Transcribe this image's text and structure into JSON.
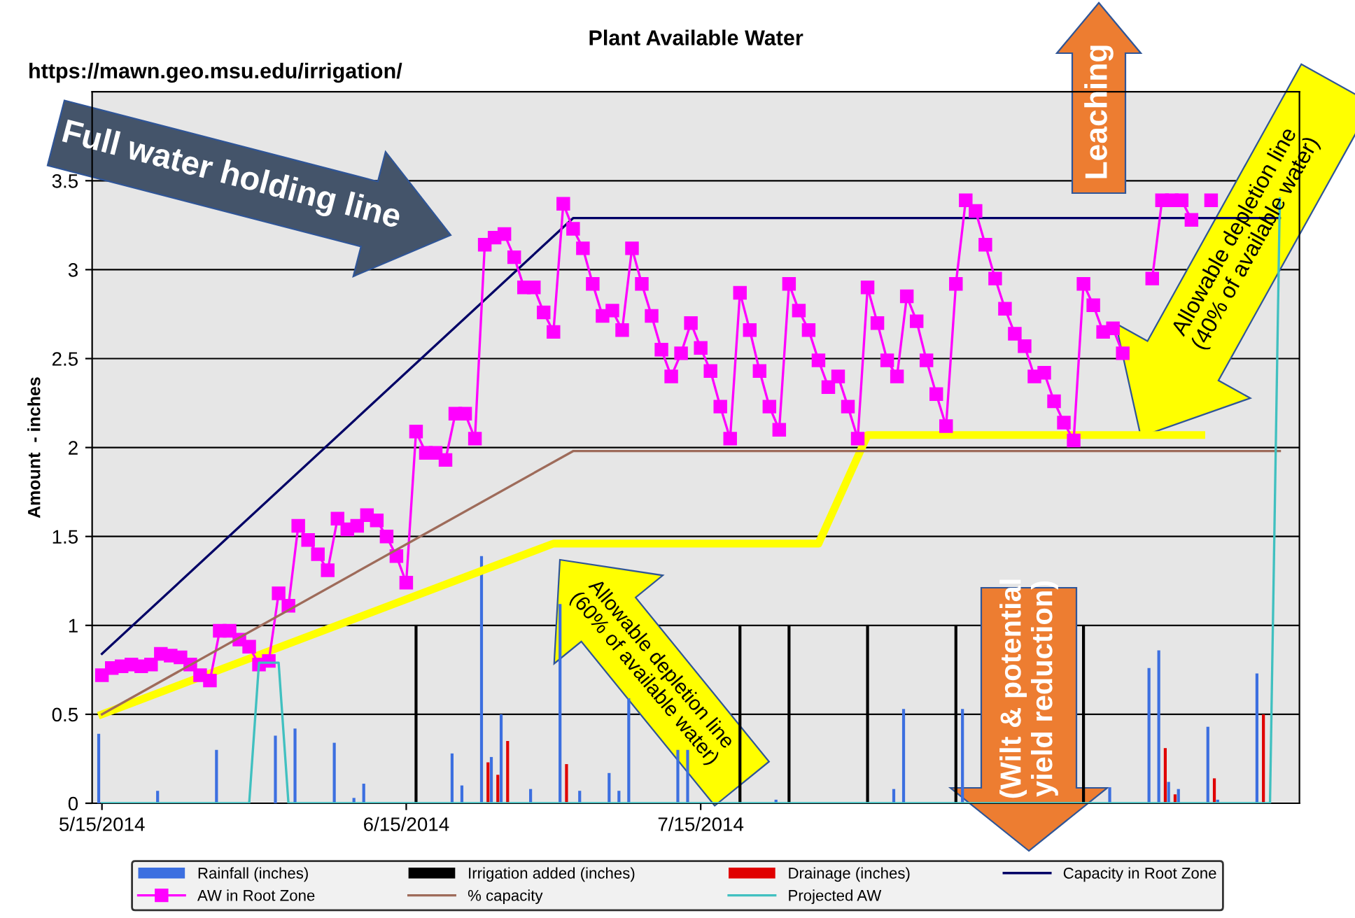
{
  "chart_data": {
    "type": "line",
    "title": "Plant Available Water",
    "ylabel": "Amount  - inches",
    "annotations": [
      "https://mawn.geo.msu.edu/irrigation/",
      "Full water holding line",
      "Leaching",
      "Allowable depletion line\n(40% of available water)",
      "Allowable depletion line\n(60% of available water)",
      "(Wilt & potential\nyield reduction)"
    ],
    "xlim": [
      "2014-05-14",
      "2014-09-14"
    ],
    "xticks": [
      {
        "value": "2014-05-15",
        "label": "5/15/2014"
      },
      {
        "value": "2014-06-15",
        "label": "6/15/2014"
      },
      {
        "value": "2014-07-15",
        "label": "7/15/2014"
      }
    ],
    "ylim": [
      0,
      4
    ],
    "yticks": [
      0,
      0.5,
      1,
      1.5,
      2,
      2.5,
      3,
      3.5
    ],
    "grid": "y",
    "legend": "bottom",
    "series": [
      {
        "name": "Rainfall (inches)",
        "type": "bar",
        "color": "#3c6fe0",
        "x": [
          "2014-05-15",
          "2014-05-21",
          "2014-05-27",
          "2014-06-02",
          "2014-06-04",
          "2014-06-08",
          "2014-06-10",
          "2014-06-11",
          "2014-06-20",
          "2014-06-21",
          "2014-06-23",
          "2014-06-24",
          "2014-06-25",
          "2014-06-28",
          "2014-07-01",
          "2014-07-03",
          "2014-07-06",
          "2014-07-07",
          "2014-07-08",
          "2014-07-13",
          "2014-07-14",
          "2014-07-23",
          "2014-08-04",
          "2014-08-05",
          "2014-08-11",
          "2014-08-26",
          "2014-08-30",
          "2014-08-31",
          "2014-09-01",
          "2014-09-02",
          "2014-09-05",
          "2014-09-06",
          "2014-09-10"
        ],
        "values": [
          0.39,
          0.07,
          0.3,
          0.38,
          0.42,
          0.34,
          0.03,
          0.11,
          0.28,
          0.1,
          1.39,
          0.26,
          0.5,
          0.08,
          1.12,
          0.07,
          0.17,
          0.07,
          0.59,
          0.3,
          0.3,
          0.02,
          0.08,
          0.53,
          0.53,
          0.09,
          0.76,
          0.86,
          0.12,
          0.08,
          0.43,
          0.02,
          0.73
        ]
      },
      {
        "name": "Irrigation added (inches)",
        "type": "bar",
        "color": "#000000",
        "x": [
          "2014-06-16",
          "2014-07-19",
          "2014-07-24",
          "2014-08-01",
          "2014-08-10",
          "2014-08-23"
        ],
        "values": [
          1,
          1,
          1,
          1,
          1,
          1
        ]
      },
      {
        "name": "Drainage (inches)",
        "type": "bar",
        "color": "#e00000",
        "x": [
          "2014-06-23",
          "2014-06-24",
          "2014-06-25",
          "2014-07-01",
          "2014-08-31",
          "2014-09-01",
          "2014-09-05",
          "2014-09-10"
        ],
        "values": [
          0.23,
          0.16,
          0.35,
          0.22,
          0.31,
          0.05,
          0.14,
          0.5
        ]
      },
      {
        "name": "Capacity in Root Zone",
        "color": "#000066",
        "x": [
          "2014-05-15",
          "2014-07-02",
          "2014-09-12"
        ],
        "values": [
          0.84,
          3.29,
          3.29
        ]
      },
      {
        "name": "AW in Root Zone",
        "color": "#ff00ff",
        "marker": "square",
        "x": [
          "2014-05-15",
          "2014-05-16",
          "2014-05-17",
          "2014-05-18",
          "2014-05-19",
          "2014-05-20",
          "2014-05-21",
          "2014-05-22",
          "2014-05-23",
          "2014-05-24",
          "2014-05-25",
          "2014-05-26",
          "2014-05-27",
          "2014-05-28",
          "2014-05-29",
          "2014-05-30",
          "2014-05-31",
          "2014-06-01",
          "2014-06-02",
          "2014-06-03",
          "2014-06-04",
          "2014-06-05",
          "2014-06-06",
          "2014-06-07",
          "2014-06-08",
          "2014-06-09",
          "2014-06-10",
          "2014-06-11",
          "2014-06-12",
          "2014-06-13",
          "2014-06-14",
          "2014-06-15",
          "2014-06-16",
          "2014-06-17",
          "2014-06-18",
          "2014-06-19",
          "2014-06-20",
          "2014-06-21",
          "2014-06-22",
          "2014-06-23",
          "2014-06-24",
          "2014-06-25",
          "2014-06-26",
          "2014-06-27",
          "2014-06-28",
          "2014-06-29",
          "2014-06-30",
          "2014-07-01",
          "2014-07-02",
          "2014-07-03",
          "2014-07-04",
          "2014-07-05",
          "2014-07-06",
          "2014-07-07",
          "2014-07-08",
          "2014-07-09",
          "2014-07-10",
          "2014-07-11",
          "2014-07-12",
          "2014-07-13",
          "2014-07-14",
          "2014-07-15",
          "2014-07-16",
          "2014-07-17",
          "2014-07-18",
          "2014-07-19",
          "2014-07-20",
          "2014-07-21",
          "2014-07-22",
          "2014-07-23",
          "2014-07-24",
          "2014-07-25",
          "2014-07-26",
          "2014-07-27",
          "2014-07-28",
          "2014-07-29",
          "2014-07-30",
          "2014-07-31",
          "2014-08-01",
          "2014-08-02",
          "2014-08-03",
          "2014-08-04",
          "2014-08-05",
          "2014-08-06",
          "2014-08-07",
          "2014-08-08",
          "2014-08-09",
          "2014-08-10",
          "2014-08-11",
          "2014-08-12",
          "2014-08-13",
          "2014-08-14",
          "2014-08-15",
          "2014-08-16",
          "2014-08-17",
          "2014-08-18",
          "2014-08-19",
          "2014-08-20",
          "2014-08-21",
          "2014-08-22",
          "2014-08-23",
          "2014-08-24",
          "2014-08-25",
          "2014-08-26",
          "2014-08-27",
          "2014-08-28",
          "2014-08-29",
          "2014-08-30",
          "2014-08-31",
          "2014-09-01",
          "2014-09-02",
          "2014-09-03",
          "2014-09-04",
          "2014-09-05"
        ],
        "values": [
          0.72,
          0.76,
          0.77,
          0.78,
          0.77,
          0.78,
          0.84,
          0.83,
          0.82,
          0.78,
          0.72,
          0.69,
          0.97,
          0.97,
          0.92,
          0.88,
          0.78,
          0.8,
          1.18,
          1.11,
          1.56,
          1.48,
          1.4,
          1.31,
          1.6,
          1.54,
          1.56,
          1.62,
          1.59,
          1.5,
          1.39,
          1.24,
          2.09,
          1.97,
          1.97,
          1.93,
          2.19,
          2.19,
          2.05,
          3.14,
          3.18,
          3.2,
          3.07,
          2.9,
          2.9,
          2.76,
          2.65,
          3.37,
          3.23,
          3.12,
          2.92,
          2.74,
          2.77,
          2.66,
          3.12,
          2.92,
          2.74,
          2.55,
          2.4,
          2.53,
          2.7,
          2.56,
          2.43,
          2.23,
          2.05,
          2.87,
          2.66,
          2.43,
          2.23,
          2.1,
          2.92,
          2.77,
          2.66,
          2.49,
          2.34,
          2.4,
          2.23,
          2.05,
          2.9,
          2.7,
          2.49,
          2.4,
          2.85,
          2.71,
          2.49,
          2.3,
          2.12,
          2.92,
          3.39,
          3.33,
          3.14,
          2.95,
          2.78,
          2.64,
          2.57,
          2.4,
          2.42,
          2.26,
          2.14,
          2.04,
          2.92,
          2.8,
          2.65,
          2.67,
          2.53,
          null,
          null,
          2.95,
          3.39,
          3.39,
          3.39,
          3.28,
          null,
          3.39
        ]
      },
      {
        "name": "% capacity",
        "color": "#9e6b5a",
        "x": [
          "2014-05-15",
          "2014-07-02",
          "2014-09-12"
        ],
        "values": [
          0.5,
          1.98,
          1.98
        ]
      },
      {
        "name": "Projected AW",
        "color": "#40c0c0",
        "x": [
          "2014-05-15",
          "2014-05-30",
          "2014-05-31",
          "2014-06-02",
          "2014-06-03",
          "2014-09-11",
          "2014-09-12"
        ],
        "values": [
          0,
          0,
          0.79,
          0.79,
          0,
          0,
          3.4
        ]
      },
      {
        "color": "#ffff00",
        "x": [
          "2014-05-15",
          "2014-06-30",
          "2014-07-27",
          "2014-08-01",
          "2014-09-04"
        ],
        "values": [
          0.5,
          1.46,
          1.46,
          2.07,
          2.07
        ]
      }
    ]
  }
}
